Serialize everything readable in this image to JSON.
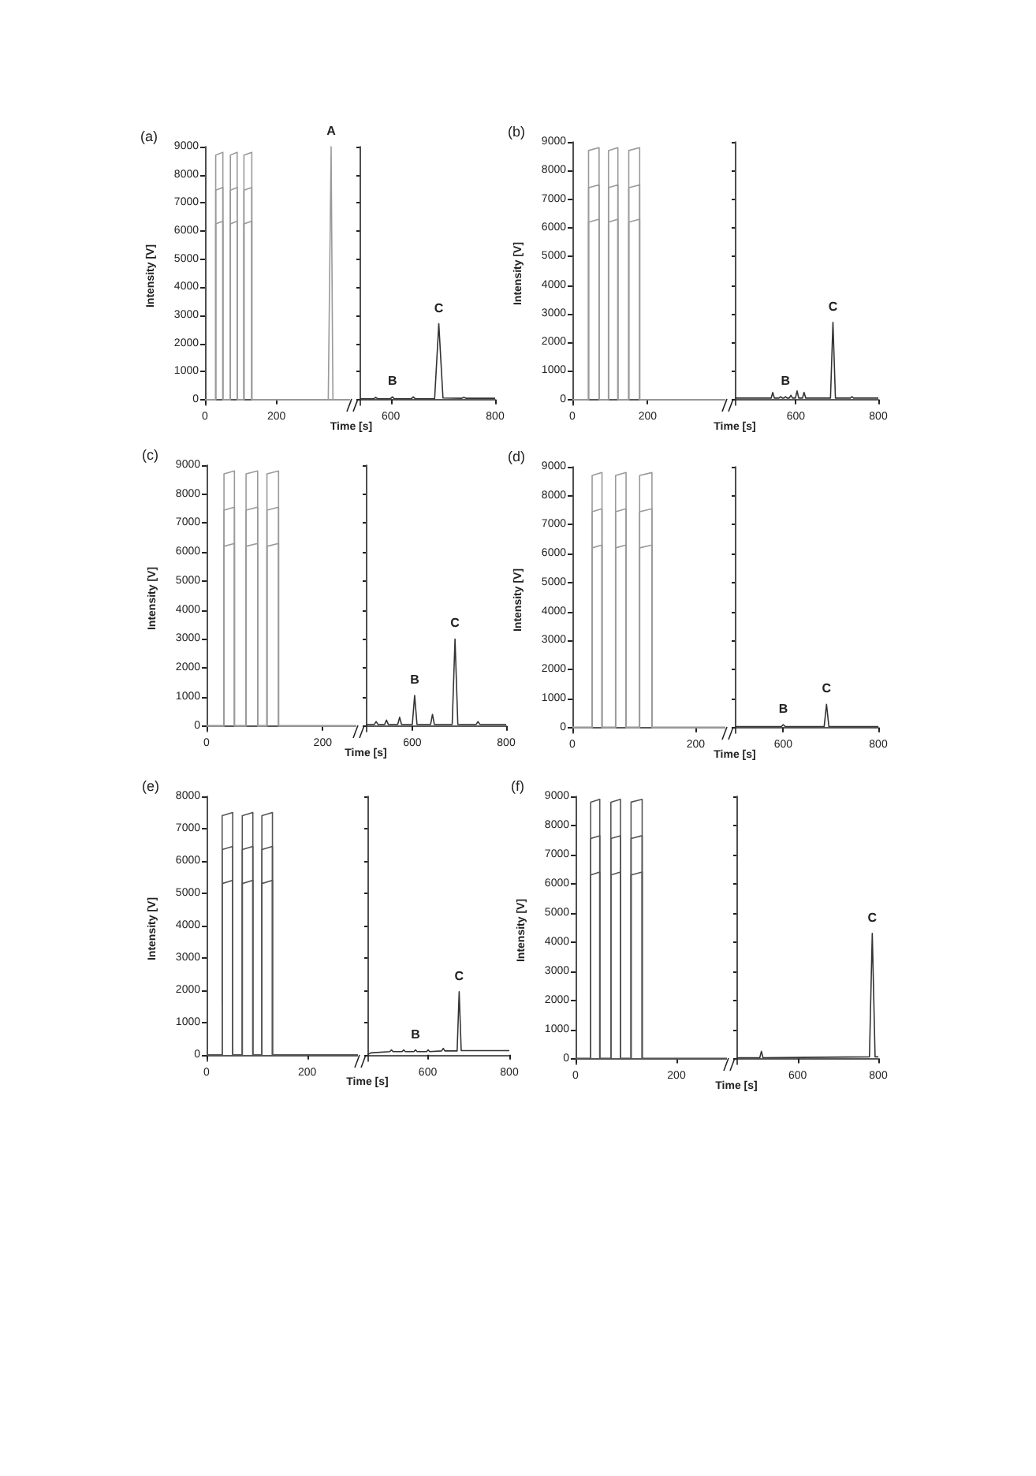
{
  "chart_data": [
    {
      "type": "line",
      "title": "(a)",
      "ylabel": "Intensity [V]",
      "xlim": [
        0,
        406
      ],
      "xticks": [
        0,
        200
      ],
      "ylim": [
        -200,
        9000
      ],
      "yticks": [
        0,
        1000,
        2000,
        3000,
        4000,
        5000,
        6000,
        7000,
        8000,
        9000
      ],
      "annotations": [
        {
          "text": "A",
          "x": 353,
          "y": 9000
        }
      ],
      "series": [
        {
          "color": "#9a9a9a",
          "x": [
            0,
            30,
            30,
            50,
            50,
            71,
            71,
            90,
            90,
            109,
            109,
            131,
            131,
            345,
            353,
            358,
            406
          ],
          "values": [
            0,
            0,
            8700,
            8800,
            0,
            0,
            8700,
            8800,
            0,
            0,
            8700,
            8800,
            0,
            0,
            9000,
            0,
            0
          ]
        },
        {
          "color": "#9a9a9a",
          "x": [
            0,
            30,
            30,
            50,
            50,
            71,
            71,
            90,
            90,
            109,
            109,
            131,
            131,
            406
          ],
          "values": [
            0,
            0,
            7450,
            7550,
            0,
            0,
            7450,
            7550,
            0,
            0,
            7450,
            7550,
            0,
            0
          ]
        },
        {
          "color": "#9a9a9a",
          "x": [
            0,
            30,
            30,
            50,
            50,
            71,
            71,
            90,
            90,
            109,
            109,
            131,
            131,
            406
          ],
          "values": [
            0,
            0,
            6250,
            6350,
            0,
            0,
            6250,
            6350,
            0,
            0,
            6250,
            6350,
            0,
            0
          ]
        }
      ]
    },
    {
      "type": "line",
      "xlabel": "Time [s]",
      "tick_labels": "x",
      "xlim": [
        540,
        800
      ],
      "xticks": [
        600,
        800
      ],
      "ylim": [
        -200,
        9000
      ],
      "yticks": [
        0,
        1000,
        2000,
        3000,
        4000,
        5000,
        6000,
        7000,
        8000,
        9000
      ],
      "annotations": [
        {
          "text": "B",
          "x": 603,
          "y": 100
        },
        {
          "text": "C",
          "x": 692,
          "y": 2700
        }
      ],
      "series": [
        {
          "color": "#333333",
          "x": [
            540,
            567,
            571,
            575,
            599,
            603,
            607,
            639,
            643,
            647,
            684,
            692,
            700,
            736,
            740,
            744,
            800
          ],
          "values": [
            30,
            30,
            80,
            30,
            30,
            100,
            30,
            30,
            100,
            30,
            30,
            2700,
            60,
            50,
            80,
            50,
            50
          ]
        }
      ]
    },
    {
      "type": "line",
      "title": "(b)",
      "ylabel": "Intensity [V]",
      "xlim": [
        0,
        407
      ],
      "xticks": [
        0,
        200
      ],
      "ylim": [
        -200,
        9000
      ],
      "yticks": [
        0,
        1000,
        2000,
        3000,
        4000,
        5000,
        6000,
        7000,
        8000,
        9000
      ],
      "series": [
        {
          "color": "#9a9a9a",
          "x": [
            0,
            43,
            43,
            71,
            71,
            96,
            96,
            121,
            121,
            150,
            150,
            179,
            179,
            407
          ],
          "values": [
            0,
            0,
            8700,
            8800,
            0,
            0,
            8700,
            8800,
            0,
            0,
            8700,
            8800,
            0,
            0
          ]
        },
        {
          "color": "#9a9a9a",
          "x": [
            0,
            43,
            43,
            71,
            71,
            96,
            96,
            121,
            121,
            150,
            150,
            179,
            179,
            407
          ],
          "values": [
            0,
            0,
            7400,
            7500,
            0,
            0,
            7400,
            7500,
            0,
            0,
            7400,
            7500,
            0,
            0
          ]
        },
        {
          "color": "#9a9a9a",
          "x": [
            0,
            43,
            43,
            71,
            71,
            96,
            96,
            121,
            121,
            150,
            150,
            179,
            179,
            407
          ],
          "values": [
            0,
            0,
            6200,
            6300,
            0,
            0,
            6200,
            6300,
            0,
            0,
            6200,
            6300,
            0,
            0
          ]
        }
      ]
    },
    {
      "type": "line",
      "xlabel": "Time [s]",
      "tick_labels": "x",
      "xlim": [
        452,
        800
      ],
      "xticks": [
        600,
        800
      ],
      "ylim": [
        -200,
        9000
      ],
      "yticks": [
        0,
        1000,
        2000,
        3000,
        4000,
        5000,
        6000,
        7000,
        8000,
        9000
      ],
      "annotations": [
        {
          "text": "B",
          "x": 575,
          "y": 100
        },
        {
          "text": "C",
          "x": 690,
          "y": 2700
        }
      ],
      "series": [
        {
          "color": "#333333",
          "x": [
            452,
            540,
            544,
            548,
            559,
            563,
            567,
            571,
            575,
            579,
            584,
            588,
            592,
            599,
            603,
            607,
            616,
            620,
            624,
            684,
            690,
            696,
            732,
            736,
            740,
            800
          ],
          "values": [
            50,
            50,
            250,
            50,
            50,
            100,
            50,
            50,
            100,
            50,
            50,
            150,
            50,
            50,
            300,
            50,
            50,
            250,
            50,
            50,
            2700,
            50,
            50,
            100,
            50,
            50
          ]
        }
      ]
    },
    {
      "type": "line",
      "title": "(c)",
      "ylabel": "Intensity [V]",
      "xlim": [
        0,
        258
      ],
      "xticks": [
        0,
        200
      ],
      "ylim": [
        -200,
        9000
      ],
      "yticks": [
        0,
        1000,
        2000,
        3000,
        4000,
        5000,
        6000,
        7000,
        8000,
        9000
      ],
      "series": [
        {
          "color": "#9a9a9a",
          "x": [
            0,
            30,
            30,
            48,
            48,
            68,
            68,
            88,
            88,
            104,
            104,
            124,
            124,
            258
          ],
          "values": [
            0,
            0,
            8700,
            8800,
            0,
            0,
            8700,
            8800,
            0,
            0,
            8700,
            8800,
            0,
            0
          ]
        },
        {
          "color": "#9a9a9a",
          "x": [
            0,
            30,
            30,
            48,
            48,
            68,
            68,
            88,
            88,
            104,
            104,
            124,
            124,
            258
          ],
          "values": [
            0,
            0,
            7450,
            7550,
            0,
            0,
            7450,
            7550,
            0,
            0,
            7450,
            7550,
            0,
            0
          ]
        },
        {
          "color": "#9a9a9a",
          "x": [
            0,
            30,
            30,
            48,
            48,
            68,
            68,
            88,
            88,
            104,
            104,
            124,
            124,
            258
          ],
          "values": [
            0,
            0,
            6200,
            6300,
            0,
            0,
            6200,
            6300,
            0,
            0,
            6200,
            6300,
            0,
            0
          ]
        }
      ]
    },
    {
      "type": "line",
      "xlabel": "Time [s]",
      "tick_labels": "x",
      "xlim": [
        501,
        800
      ],
      "xticks": [
        600,
        800
      ],
      "ylim": [
        -200,
        9000
      ],
      "yticks": [
        0,
        1000,
        2000,
        3000,
        4000,
        5000,
        6000,
        7000,
        8000,
        9000
      ],
      "annotations": [
        {
          "text": "B",
          "x": 605,
          "y": 1050
        },
        {
          "text": "C",
          "x": 691,
          "y": 3000
        }
      ],
      "series": [
        {
          "color": "#333333",
          "x": [
            501,
            519,
            523,
            527,
            541,
            545,
            549,
            569,
            573,
            577,
            600,
            605,
            610,
            639,
            643,
            647,
            685,
            691,
            697,
            736,
            740,
            744,
            800
          ],
          "values": [
            50,
            50,
            150,
            50,
            50,
            200,
            50,
            50,
            300,
            50,
            50,
            1050,
            50,
            50,
            400,
            50,
            50,
            3000,
            50,
            50,
            150,
            50,
            50
          ]
        }
      ]
    },
    {
      "type": "line",
      "title": "(d)",
      "ylabel": "Intensity [V]",
      "xlim": [
        0,
        248
      ],
      "xticks": [
        0,
        200
      ],
      "ylim": [
        -200,
        9000
      ],
      "yticks": [
        0,
        1000,
        2000,
        3000,
        4000,
        5000,
        6000,
        7000,
        8000,
        9000
      ],
      "series": [
        {
          "color": "#9a9a9a",
          "x": [
            0,
            32,
            32,
            48,
            48,
            70,
            70,
            87,
            87,
            109,
            109,
            129,
            129,
            248
          ],
          "values": [
            0,
            0,
            8700,
            8800,
            0,
            0,
            8700,
            8800,
            0,
            0,
            8700,
            8800,
            0,
            0
          ]
        },
        {
          "color": "#9a9a9a",
          "x": [
            0,
            32,
            32,
            48,
            48,
            70,
            70,
            87,
            87,
            109,
            109,
            129,
            129,
            248
          ],
          "values": [
            0,
            0,
            7450,
            7550,
            0,
            0,
            7450,
            7550,
            0,
            0,
            7450,
            7550,
            0,
            0
          ]
        },
        {
          "color": "#9a9a9a",
          "x": [
            0,
            32,
            32,
            48,
            48,
            70,
            70,
            87,
            87,
            109,
            109,
            129,
            129,
            248
          ],
          "values": [
            0,
            0,
            6200,
            6300,
            0,
            0,
            6200,
            6300,
            0,
            0,
            6200,
            6300,
            0,
            0
          ]
        }
      ]
    },
    {
      "type": "line",
      "xlabel": "Time [s]",
      "tick_labels": "x",
      "xlim": [
        498,
        800
      ],
      "xticks": [
        600,
        800
      ],
      "ylim": [
        -200,
        9000
      ],
      "yticks": [
        0,
        1000,
        2000,
        3000,
        4000,
        5000,
        6000,
        7000,
        8000,
        9000
      ],
      "annotations": [
        {
          "text": "B",
          "x": 600,
          "y": 100
        },
        {
          "text": "C",
          "x": 691,
          "y": 800
        }
      ],
      "series": [
        {
          "color": "#333333",
          "x": [
            498,
            596,
            600,
            604,
            686,
            691,
            696,
            800
          ],
          "values": [
            30,
            30,
            100,
            30,
            30,
            800,
            30,
            30
          ]
        }
      ]
    },
    {
      "type": "line",
      "title": "(e)",
      "ylabel": "Intensity [V]",
      "xlim": [
        0,
        301
      ],
      "xticks": [
        0,
        200
      ],
      "ylim": [
        -200,
        8000
      ],
      "yticks": [
        0,
        1000,
        2000,
        3000,
        4000,
        5000,
        6000,
        7000,
        8000
      ],
      "series": [
        {
          "color": "#555555",
          "x": [
            0,
            31,
            31,
            52,
            52,
            71,
            71,
            92,
            92,
            110,
            110,
            131,
            131,
            301
          ],
          "values": [
            0,
            0,
            7400,
            7500,
            0,
            0,
            7400,
            7500,
            0,
            0,
            7400,
            7500,
            0,
            0
          ]
        },
        {
          "color": "#555555",
          "x": [
            0,
            31,
            31,
            52,
            52,
            71,
            71,
            92,
            92,
            110,
            110,
            131,
            131,
            301
          ],
          "values": [
            0,
            0,
            6350,
            6450,
            0,
            0,
            6350,
            6450,
            0,
            0,
            6350,
            6450,
            0,
            0
          ]
        },
        {
          "color": "#555555",
          "x": [
            0,
            31,
            31,
            52,
            52,
            71,
            71,
            92,
            92,
            110,
            110,
            131,
            131,
            301
          ],
          "values": [
            0,
            0,
            5300,
            5400,
            0,
            0,
            5300,
            5400,
            0,
            0,
            5300,
            5400,
            0,
            0
          ]
        }
      ]
    },
    {
      "type": "line",
      "xlabel": "Time [s]",
      "tick_labels": "x",
      "xlim": [
        452,
        800
      ],
      "xticks": [
        600,
        800
      ],
      "ylim": [
        -200,
        8000
      ],
      "yticks": [
        0,
        1000,
        2000,
        3000,
        4000,
        5000,
        6000,
        7000,
        8000
      ],
      "annotations": [
        {
          "text": "B",
          "x": 570,
          "y": 150
        },
        {
          "text": "C",
          "x": 677,
          "y": 1950
        }
      ],
      "series": [
        {
          "color": "#333333",
          "x": [
            452,
            460,
            507,
            511,
            515,
            537,
            541,
            545,
            566,
            570,
            574,
            597,
            601,
            605,
            634,
            638,
            642,
            672,
            677,
            682,
            800
          ],
          "values": [
            0,
            60,
            100,
            150,
            100,
            100,
            150,
            100,
            100,
            150,
            100,
            100,
            150,
            100,
            120,
            200,
            120,
            120,
            1950,
            130,
            130
          ]
        }
      ]
    },
    {
      "type": "line",
      "title": "(f)",
      "ylabel": "Intensity [V]",
      "xlim": [
        0,
        300
      ],
      "xticks": [
        0,
        200
      ],
      "ylim": [
        -200,
        9000
      ],
      "yticks": [
        0,
        1000,
        2000,
        3000,
        4000,
        5000,
        6000,
        7000,
        8000,
        9000
      ],
      "series": [
        {
          "color": "#555555",
          "x": [
            0,
            30,
            30,
            48,
            48,
            70,
            70,
            89,
            89,
            110,
            110,
            132,
            132,
            300
          ],
          "values": [
            0,
            0,
            8800,
            8900,
            0,
            0,
            8800,
            8900,
            0,
            0,
            8800,
            8900,
            0,
            0
          ]
        },
        {
          "color": "#555555",
          "x": [
            0,
            30,
            30,
            48,
            48,
            70,
            70,
            89,
            89,
            110,
            110,
            132,
            132,
            300
          ],
          "values": [
            0,
            0,
            7550,
            7650,
            0,
            0,
            7550,
            7650,
            0,
            0,
            7550,
            7650,
            0,
            0
          ]
        },
        {
          "color": "#555555",
          "x": [
            0,
            30,
            30,
            48,
            48,
            70,
            70,
            89,
            89,
            110,
            110,
            132,
            132,
            300
          ],
          "values": [
            0,
            0,
            6300,
            6400,
            0,
            0,
            6300,
            6400,
            0,
            0,
            6300,
            6400,
            0,
            0
          ]
        }
      ]
    },
    {
      "type": "line",
      "xlabel": "Time [s]",
      "tick_labels": "x",
      "xlim": [
        448,
        800
      ],
      "xticks": [
        600,
        800
      ],
      "ylim": [
        -200,
        9000
      ],
      "yticks": [
        0,
        1000,
        2000,
        3000,
        4000,
        5000,
        6000,
        7000,
        8000,
        9000
      ],
      "annotations": [
        {
          "text": "C",
          "x": 785,
          "y": 4300
        }
      ],
      "series": [
        {
          "color": "#333333",
          "x": [
            448,
            506,
            510,
            514,
            778,
            785,
            792,
            800
          ],
          "values": [
            30,
            30,
            250,
            30,
            60,
            4300,
            60,
            60
          ]
        }
      ]
    }
  ]
}
